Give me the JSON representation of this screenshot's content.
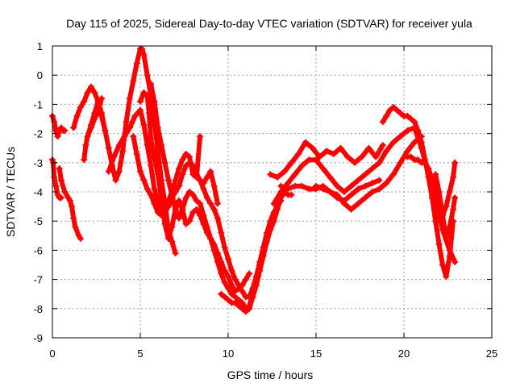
{
  "chart_data": {
    "type": "scatter",
    "title": "Day 115 of 2025, Sidereal Day-to-day VTEC variation (SDTVAR) for receiver yula",
    "xlabel": "GPS time / hours",
    "ylabel": "SDTVAR / TECUs",
    "xlim": [
      0,
      25
    ],
    "ylim": [
      -9,
      1
    ],
    "xticks": [
      0,
      5,
      10,
      15,
      20,
      25
    ],
    "yticks": [
      -9,
      -8,
      -7,
      -6,
      -5,
      -4,
      -3,
      -2,
      -1,
      0,
      1
    ],
    "grid": true,
    "marker": "+",
    "color": "#ff0000",
    "series": [
      {
        "x": [
          0.0,
          0.1,
          0.2,
          0.3,
          0.4,
          0.5,
          0.6,
          0.7
        ],
        "y": [
          -1.4,
          -1.6,
          -1.9,
          -2.1,
          -1.9,
          -1.8,
          -1.9,
          -1.9
        ]
      },
      {
        "x": [
          0.0,
          0.05,
          0.1,
          0.2,
          0.3,
          0.4,
          0.5
        ],
        "y": [
          -2.9,
          -3.0,
          -3.5,
          -3.8,
          -4.1,
          -4.2,
          -4.2
        ]
      },
      {
        "x": [
          0.4,
          0.5,
          0.7,
          0.9,
          1.0,
          1.1,
          1.2,
          1.3,
          1.5,
          1.6
        ],
        "y": [
          -3.2,
          -3.6,
          -4.0,
          -4.2,
          -4.3,
          -4.5,
          -4.9,
          -5.2,
          -5.5,
          -5.6
        ]
      },
      {
        "x": [
          1.2,
          1.4,
          1.6,
          1.8,
          2.0,
          2.2,
          2.4,
          2.6,
          2.8,
          3.0
        ],
        "y": [
          -1.8,
          -1.4,
          -1.1,
          -0.9,
          -0.6,
          -0.4,
          -0.6,
          -0.9,
          -1.4,
          -1.9
        ]
      },
      {
        "x": [
          1.8,
          1.9,
          2.0,
          2.2,
          2.4,
          2.6,
          2.7,
          2.8
        ],
        "y": [
          -2.9,
          -2.4,
          -2.1,
          -1.8,
          -1.5,
          -1.2,
          -1.0,
          -0.8
        ]
      },
      {
        "x": [
          2.0,
          2.2,
          2.4,
          2.6,
          2.8,
          3.0,
          3.2,
          3.4,
          3.6,
          3.8,
          4.0,
          4.2,
          4.4,
          4.6,
          4.8,
          5.0,
          5.1,
          5.2,
          5.4,
          5.6,
          5.8,
          6.0,
          6.2,
          6.4,
          6.6,
          6.8,
          7.0
        ],
        "y": [
          -2.1,
          -1.7,
          -1.3,
          -0.9,
          -1.3,
          -1.9,
          -2.5,
          -3.1,
          -3.6,
          -3.3,
          -2.6,
          -1.6,
          -0.8,
          -0.2,
          0.4,
          0.9,
          0.9,
          0.7,
          0.0,
          -0.7,
          -1.6,
          -2.6,
          -3.6,
          -4.4,
          -5.3,
          -5.7,
          -6.1
        ]
      },
      {
        "x": [
          3.2,
          3.5,
          3.8,
          4.1,
          4.4,
          4.7,
          5.0,
          5.2,
          5.4,
          5.6,
          5.8,
          6.0,
          6.2,
          6.4,
          6.6,
          6.8,
          7.0,
          7.2,
          7.4,
          7.6,
          7.8,
          8.0,
          8.2,
          8.4
        ],
        "y": [
          -3.3,
          -2.8,
          -2.4,
          -2.1,
          -1.8,
          -1.4,
          -1.2,
          -1.7,
          -2.4,
          -3.1,
          -3.9,
          -4.3,
          -4.6,
          -4.5,
          -4.3,
          -4.0,
          -3.6,
          -3.2,
          -2.9,
          -2.7,
          -2.8,
          -3.4,
          -3.5,
          -2.1
        ]
      },
      {
        "x": [
          4.6,
          4.8,
          5.0,
          5.2,
          5.4,
          5.6,
          5.8,
          6.0,
          6.2,
          6.4,
          6.6,
          6.8,
          7.0,
          7.2,
          7.4,
          7.6,
          7.8,
          8.0,
          8.2,
          8.4,
          8.6,
          8.8,
          9.0,
          9.2,
          9.4
        ],
        "y": [
          -2.1,
          -2.7,
          -3.3,
          -3.6,
          -3.9,
          -4.1,
          -4.4,
          -4.7,
          -4.8,
          -4.7,
          -4.5,
          -4.2,
          -4.0,
          -3.8,
          -3.4,
          -3.1,
          -3.0,
          -3.1,
          -3.4,
          -3.6,
          -3.7,
          -3.5,
          -3.3,
          -3.8,
          -4.4
        ]
      },
      {
        "x": [
          5.0,
          5.2,
          5.4,
          5.5,
          5.6,
          5.8,
          6.0,
          6.2,
          6.4,
          6.6,
          6.8,
          7.0,
          7.2,
          7.4,
          7.6,
          7.8,
          8.0,
          8.2,
          8.4,
          8.6,
          8.8,
          9.0,
          9.2,
          9.4,
          9.6,
          9.8,
          10.0,
          10.2,
          10.4,
          10.6,
          10.8,
          11.0,
          11.2
        ],
        "y": [
          -0.9,
          -0.6,
          -0.7,
          -1.3,
          -2.2,
          -2.8,
          -3.4,
          -4.2,
          -5.1,
          -5.6,
          -5.2,
          -4.6,
          -4.3,
          -4.6,
          -5.1,
          -5.0,
          -4.7,
          -4.6,
          -4.8,
          -5.1,
          -5.4,
          -5.6,
          -5.8,
          -6.1,
          -6.4,
          -6.7,
          -6.9,
          -7.2,
          -7.4,
          -7.3,
          -7.2,
          -7.0,
          -6.8
        ]
      },
      {
        "x": [
          5.6,
          5.8,
          6.0,
          6.2,
          6.4,
          6.6,
          6.8,
          7.0,
          7.2,
          7.4,
          7.6,
          7.8,
          8.0,
          8.2,
          8.4,
          8.6,
          8.8,
          9.0,
          9.2,
          9.4,
          9.6,
          9.8,
          10.0,
          10.2,
          10.4,
          10.6,
          10.8,
          11.0,
          11.2,
          11.4,
          11.6,
          11.8,
          12.0,
          12.2,
          12.4
        ],
        "y": [
          -0.3,
          -0.9,
          -1.8,
          -2.4,
          -3.0,
          -3.6,
          -4.1,
          -4.6,
          -4.9,
          -4.6,
          -4.2,
          -4.0,
          -4.1,
          -4.3,
          -4.4,
          -4.8,
          -5.2,
          -5.6,
          -6.0,
          -6.4,
          -6.8,
          -7.1,
          -7.3,
          -7.5,
          -7.6,
          -7.7,
          -7.8,
          -8.0,
          -7.9,
          -7.5,
          -7.0,
          -6.5,
          -6.0,
          -5.6,
          -5.2
        ]
      },
      {
        "x": [
          8.4,
          8.6,
          8.8,
          9.0,
          9.2,
          9.4,
          9.6,
          9.8,
          10.0,
          10.2,
          10.4,
          10.6,
          10.8,
          11.0,
          11.2,
          11.4,
          11.6,
          11.8,
          12.0,
          12.2,
          12.4,
          12.6,
          12.8,
          13.0
        ],
        "y": [
          -3.6,
          -3.9,
          -4.2,
          -4.4,
          -4.6,
          -4.9,
          -5.4,
          -5.9,
          -6.3,
          -6.7,
          -7.0,
          -7.2,
          -7.4,
          -7.6,
          -7.6,
          -7.3,
          -6.9,
          -6.4,
          -5.9,
          -5.4,
          -5.0,
          -4.7,
          -4.5,
          -4.3
        ]
      },
      {
        "x": [
          9.6,
          9.8,
          10.0,
          10.2,
          10.4,
          10.6,
          10.8,
          11.0,
          11.2,
          11.4,
          11.6,
          11.8,
          12.0,
          12.2,
          12.4,
          12.6,
          12.8,
          13.0,
          13.2,
          13.4,
          13.6
        ],
        "y": [
          -7.5,
          -7.6,
          -7.7,
          -7.8,
          -7.8,
          -7.9,
          -8.0,
          -8.1,
          -8.0,
          -7.6,
          -7.2,
          -6.7,
          -6.2,
          -5.7,
          -5.3,
          -5.0,
          -4.6,
          -4.2,
          -4.0,
          -4.1,
          -4.1
        ]
      },
      {
        "x": [
          12.4,
          12.8,
          13.2,
          13.6,
          14.0,
          14.4,
          14.8,
          15.2,
          15.6,
          16.0,
          16.4,
          16.8,
          17.2,
          17.6,
          18.0,
          18.4,
          18.8
        ],
        "y": [
          -3.4,
          -3.5,
          -3.3,
          -3.0,
          -2.7,
          -2.3,
          -2.5,
          -2.8,
          -2.6,
          -2.7,
          -2.5,
          -2.8,
          -3.0,
          -2.8,
          -2.5,
          -2.8,
          -2.4
        ]
      },
      {
        "x": [
          12.6,
          13.0,
          13.4,
          13.8,
          14.2,
          14.6,
          15.0,
          15.4,
          15.8,
          16.2,
          16.6,
          17.0,
          17.4,
          17.8,
          18.2,
          18.6,
          19.0,
          19.4,
          19.8,
          20.2,
          20.6,
          21.0,
          21.4,
          21.8,
          22.2,
          22.6,
          22.9
        ],
        "y": [
          -4.4,
          -4.0,
          -3.7,
          -3.4,
          -3.1,
          -2.9,
          -2.9,
          -3.2,
          -3.5,
          -3.8,
          -4.0,
          -3.8,
          -3.6,
          -3.4,
          -3.2,
          -3.0,
          -2.6,
          -2.3,
          -2.1,
          -1.9,
          -1.8,
          -2.5,
          -3.4,
          -4.3,
          -5.3,
          -6.0,
          -6.4
        ]
      },
      {
        "x": [
          13.0,
          13.4,
          13.8,
          14.2,
          14.6,
          15.0,
          15.4,
          15.8,
          16.2,
          16.6,
          17.0,
          17.4,
          17.8,
          18.2,
          18.6
        ],
        "y": [
          -3.8,
          -3.9,
          -3.8,
          -3.8,
          -3.9,
          -3.9,
          -3.8,
          -4.0,
          -4.2,
          -4.3,
          -4.1,
          -3.9,
          -3.8,
          -3.7,
          -3.6
        ]
      },
      {
        "x": [
          15.0,
          15.4,
          15.8,
          16.2,
          16.6,
          17.0,
          17.4,
          17.8,
          18.2,
          18.6,
          19.0,
          19.4,
          19.8,
          20.2,
          20.6,
          21.0
        ],
        "y": [
          -3.8,
          -3.9,
          -4.0,
          -4.1,
          -4.4,
          -4.6,
          -4.4,
          -4.2,
          -4.0,
          -3.9,
          -3.7,
          -3.4,
          -3.0,
          -2.6,
          -2.3,
          -2.1
        ]
      },
      {
        "x": [
          18.8,
          19.0,
          19.2,
          19.4,
          19.6,
          19.8,
          20.0,
          20.2,
          20.4,
          20.6,
          20.8,
          21.0,
          21.2,
          21.4,
          21.6,
          21.8,
          22.0,
          22.2,
          22.4,
          22.6,
          22.8
        ],
        "y": [
          -1.6,
          -1.4,
          -1.2,
          -1.1,
          -1.2,
          -1.3,
          -1.4,
          -1.4,
          -1.5,
          -1.6,
          -1.9,
          -2.3,
          -2.9,
          -3.5,
          -4.2,
          -5.0,
          -5.8,
          -6.5,
          -6.9,
          -6.2,
          -5.0
        ]
      },
      {
        "x": [
          20.2,
          20.4,
          20.6,
          20.8,
          21.0,
          21.2,
          21.4,
          21.6,
          21.8,
          22.0,
          22.2,
          22.4,
          22.6,
          22.8,
          22.9
        ],
        "y": [
          -2.8,
          -2.8,
          -2.9,
          -2.9,
          -3.0,
          -3.0,
          -3.2,
          -3.6,
          -4.0,
          -4.5,
          -4.8,
          -4.5,
          -4.0,
          -3.5,
          -3.0
        ]
      },
      {
        "x": [
          21.8,
          22.0,
          22.2,
          22.4,
          22.6,
          22.8,
          22.9
        ],
        "y": [
          -3.4,
          -4.0,
          -4.8,
          -5.6,
          -5.2,
          -4.6,
          -4.2
        ]
      }
    ]
  }
}
